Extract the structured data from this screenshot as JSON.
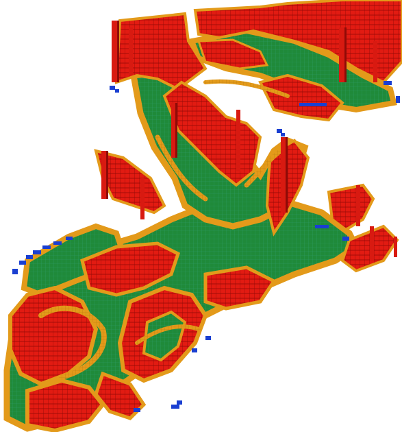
{
  "scene": {
    "kind": "3D voxel traversability map",
    "background": "#ffffff",
    "legend_colors": {
      "ground": "#1f8a3a",
      "ground_edge": "#2e8f6c",
      "margin": "#e39a1a",
      "obstacle": "#e21b12",
      "obstacle_shade": "#a50f0a",
      "frontier": "#1a3fd1"
    }
  }
}
